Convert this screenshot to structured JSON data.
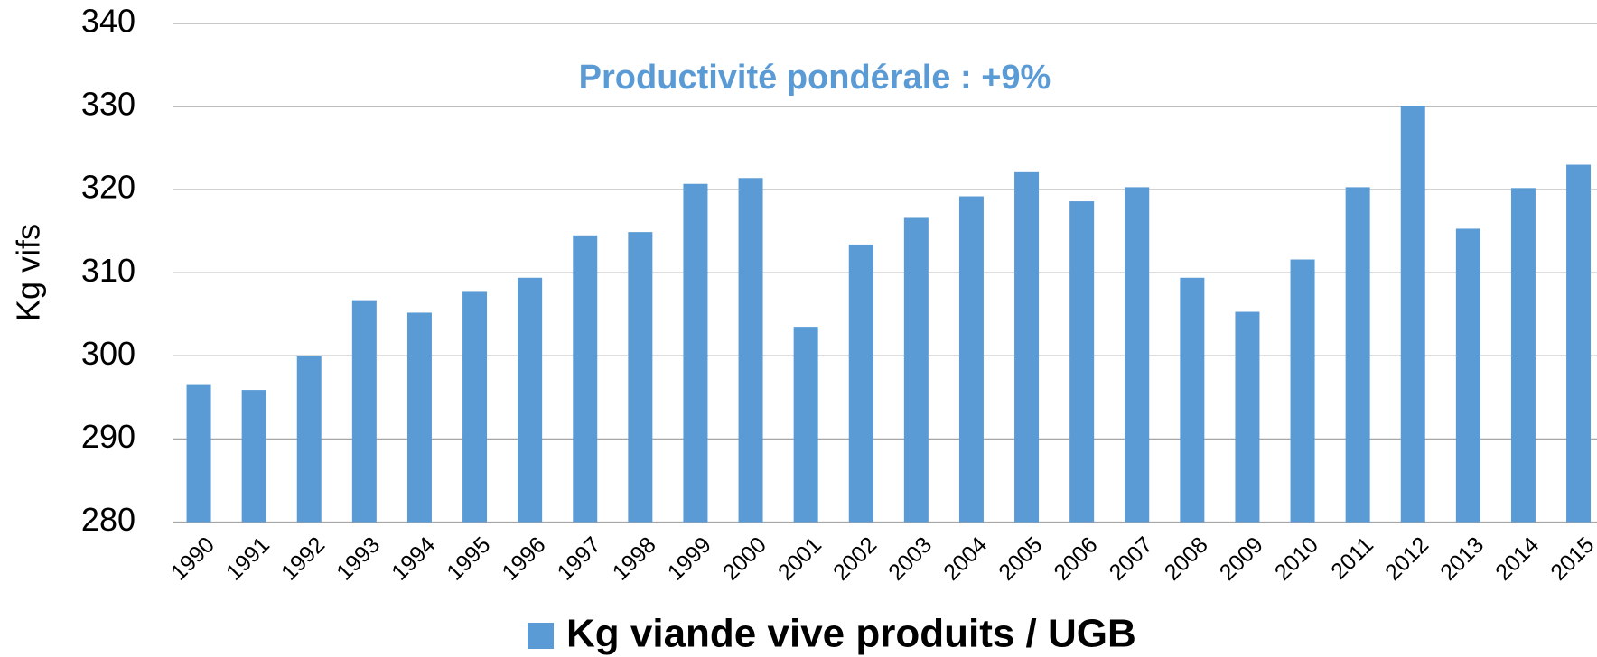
{
  "chart_data": {
    "type": "bar",
    "annotation": "Productivité pondérale : +9%",
    "y_label": "Kg vifs",
    "categories": [
      "1990",
      "1991",
      "1992",
      "1993",
      "1994",
      "1995",
      "1996",
      "1997",
      "1998",
      "1999",
      "2000",
      "2001",
      "2002",
      "2003",
      "2004",
      "2005",
      "2006",
      "2007",
      "2008",
      "2009",
      "2010",
      "2011",
      "2012",
      "2013",
      "2014",
      "2015"
    ],
    "series": [
      {
        "name": "Kg viande vive produits / UGB",
        "color": "#5b9bd5",
        "values": [
          296.5,
          295.9,
          300,
          306.7,
          305.2,
          307.7,
          309.4,
          314.5,
          314.9,
          320.7,
          321.4,
          303.5,
          313.4,
          316.6,
          319.2,
          322.1,
          318.6,
          320.3,
          309.4,
          305.3,
          311.6,
          320.3,
          330.1,
          315.3,
          320.2,
          323
        ]
      }
    ],
    "ylim": [
      280,
      340
    ],
    "yticks": [
      280,
      290,
      300,
      310,
      320,
      330,
      340
    ],
    "grid": true,
    "legend": "bottom"
  }
}
